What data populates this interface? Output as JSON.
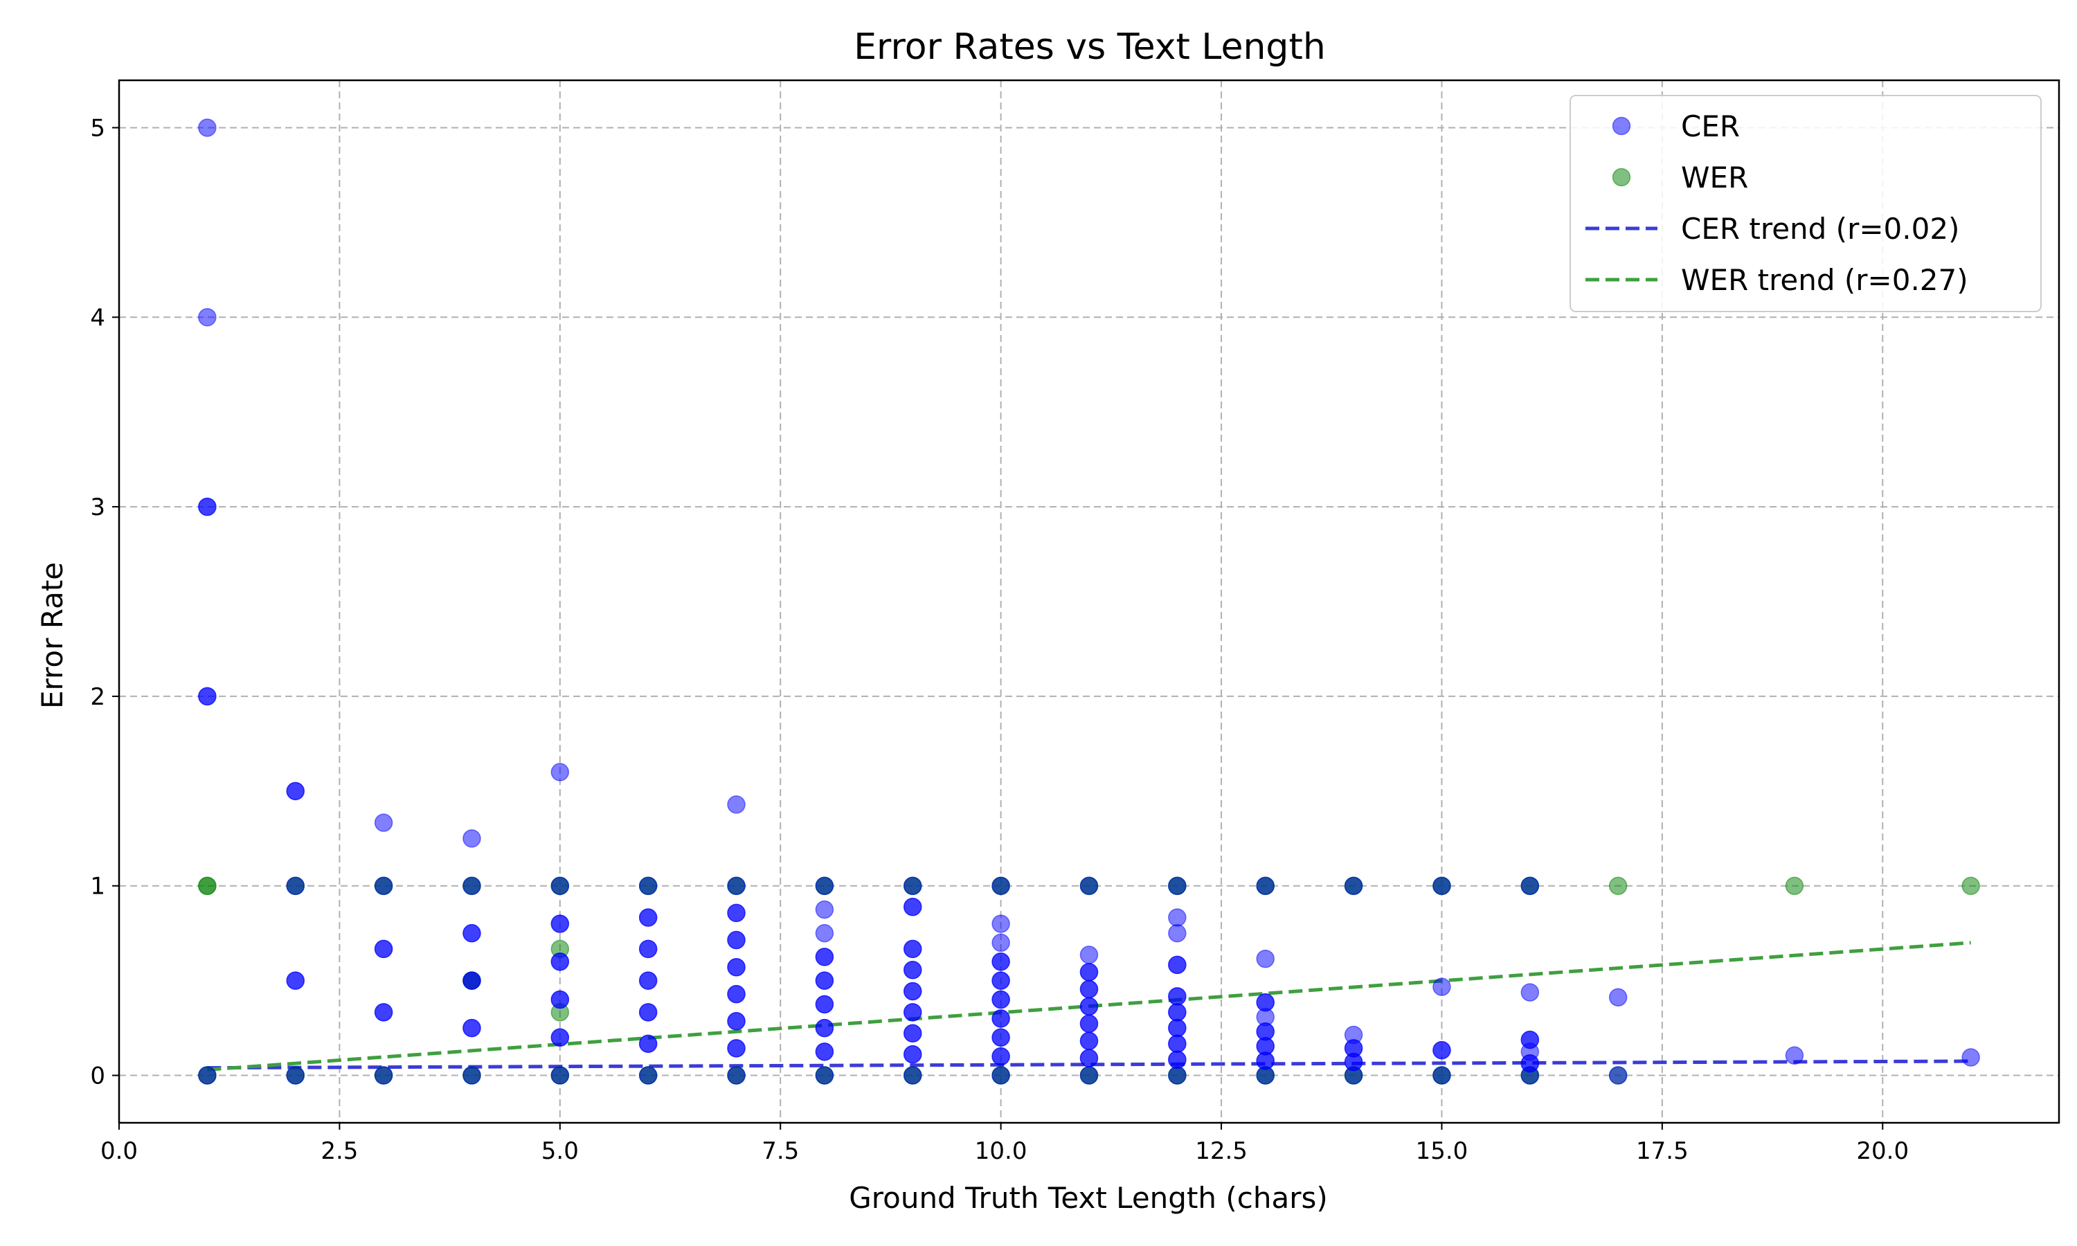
{
  "chart_data": {
    "type": "scatter",
    "title": "Error Rates vs Text Length",
    "xlabel": "Ground Truth Text Length (chars)",
    "ylabel": "Error Rate",
    "xlim": [
      0,
      22
    ],
    "ylim": [
      -0.25,
      5.25
    ],
    "xticks": [
      0,
      2.5,
      5,
      7.5,
      10,
      12.5,
      15,
      17.5,
      20
    ],
    "xtick_labels": [
      "0.0",
      "2.5",
      "5.0",
      "7.5",
      "10.0",
      "12.5",
      "15.0",
      "17.5",
      "20.0"
    ],
    "yticks": [
      0,
      1,
      2,
      3,
      4,
      5
    ],
    "ytick_labels": [
      "0",
      "1",
      "2",
      "3",
      "4",
      "5"
    ],
    "grid": true,
    "legend_position": "top-right",
    "colors": {
      "cer": "#0000ff",
      "wer": "#008000",
      "cer_trend": "#3b3bd8",
      "wer_trend": "#3f9f3f",
      "grid": "#b0b0b0"
    },
    "legend": [
      {
        "label": "CER",
        "kind": "marker",
        "series": "cer"
      },
      {
        "label": "WER",
        "kind": "marker",
        "series": "wer"
      },
      {
        "label": "CER trend (r=0.02)",
        "kind": "line",
        "series": "cer_trend"
      },
      {
        "label": "WER trend (r=0.27)",
        "kind": "line",
        "series": "wer_trend"
      }
    ],
    "series": [
      {
        "name": "CER",
        "key": "cer",
        "points": [
          [
            1,
            5
          ],
          [
            1,
            4
          ],
          [
            1,
            3
          ],
          [
            1,
            3
          ],
          [
            1,
            2
          ],
          [
            1,
            2
          ],
          [
            1,
            0
          ],
          [
            2,
            1.5
          ],
          [
            2,
            1.5
          ],
          [
            2,
            1
          ],
          [
            2,
            0.5
          ],
          [
            2,
            0.5
          ],
          [
            2,
            0
          ],
          [
            3,
            1.333
          ],
          [
            3,
            1
          ],
          [
            3,
            0.667
          ],
          [
            3,
            0.667
          ],
          [
            3,
            0.333
          ],
          [
            3,
            0.333
          ],
          [
            3,
            0
          ],
          [
            4,
            1.25
          ],
          [
            4,
            1
          ],
          [
            4,
            0.75
          ],
          [
            4,
            0.75
          ],
          [
            4,
            0.5
          ],
          [
            4,
            0.5
          ],
          [
            4,
            0.25
          ],
          [
            4,
            0.25
          ],
          [
            4,
            0
          ],
          [
            5,
            1.6
          ],
          [
            5,
            1
          ],
          [
            5,
            0.8
          ],
          [
            5,
            0.8
          ],
          [
            5,
            0.6
          ],
          [
            5,
            0.6
          ],
          [
            5,
            0.4
          ],
          [
            5,
            0.4
          ],
          [
            5,
            0.2
          ],
          [
            5,
            0.2
          ],
          [
            5,
            0
          ],
          [
            6,
            1
          ],
          [
            6,
            0.833
          ],
          [
            6,
            0.833
          ],
          [
            6,
            0.667
          ],
          [
            6,
            0.667
          ],
          [
            6,
            0.5
          ],
          [
            6,
            0.5
          ],
          [
            6,
            0.333
          ],
          [
            6,
            0.333
          ],
          [
            6,
            0.167
          ],
          [
            6,
            0.167
          ],
          [
            6,
            0
          ],
          [
            7,
            1.429
          ],
          [
            7,
            1
          ],
          [
            7,
            0.857
          ],
          [
            7,
            0.857
          ],
          [
            7,
            0.714
          ],
          [
            7,
            0.714
          ],
          [
            7,
            0.571
          ],
          [
            7,
            0.571
          ],
          [
            7,
            0.429
          ],
          [
            7,
            0.429
          ],
          [
            7,
            0.286
          ],
          [
            7,
            0.286
          ],
          [
            7,
            0.143
          ],
          [
            7,
            0.143
          ],
          [
            7,
            0
          ],
          [
            8,
            1
          ],
          [
            8,
            0.875
          ],
          [
            8,
            0.75
          ],
          [
            8,
            0.625
          ],
          [
            8,
            0.625
          ],
          [
            8,
            0.5
          ],
          [
            8,
            0.5
          ],
          [
            8,
            0.375
          ],
          [
            8,
            0.375
          ],
          [
            8,
            0.25
          ],
          [
            8,
            0.25
          ],
          [
            8,
            0.125
          ],
          [
            8,
            0.125
          ],
          [
            8,
            0
          ],
          [
            9,
            1
          ],
          [
            9,
            0.889
          ],
          [
            9,
            0.889
          ],
          [
            9,
            0.667
          ],
          [
            9,
            0.667
          ],
          [
            9,
            0.556
          ],
          [
            9,
            0.556
          ],
          [
            9,
            0.444
          ],
          [
            9,
            0.444
          ],
          [
            9,
            0.333
          ],
          [
            9,
            0.333
          ],
          [
            9,
            0.222
          ],
          [
            9,
            0.222
          ],
          [
            9,
            0.111
          ],
          [
            9,
            0.111
          ],
          [
            9,
            0
          ],
          [
            10,
            1
          ],
          [
            10,
            0.8
          ],
          [
            10,
            0.7
          ],
          [
            10,
            0.6
          ],
          [
            10,
            0.6
          ],
          [
            10,
            0.5
          ],
          [
            10,
            0.5
          ],
          [
            10,
            0.4
          ],
          [
            10,
            0.4
          ],
          [
            10,
            0.3
          ],
          [
            10,
            0.3
          ],
          [
            10,
            0.2
          ],
          [
            10,
            0.2
          ],
          [
            10,
            0.1
          ],
          [
            10,
            0.1
          ],
          [
            10,
            0
          ],
          [
            11,
            1
          ],
          [
            11,
            0.636
          ],
          [
            11,
            0.545
          ],
          [
            11,
            0.545
          ],
          [
            11,
            0.455
          ],
          [
            11,
            0.455
          ],
          [
            11,
            0.364
          ],
          [
            11,
            0.364
          ],
          [
            11,
            0.273
          ],
          [
            11,
            0.273
          ],
          [
            11,
            0.182
          ],
          [
            11,
            0.182
          ],
          [
            11,
            0.091
          ],
          [
            11,
            0.091
          ],
          [
            11,
            0
          ],
          [
            12,
            1
          ],
          [
            12,
            0.833
          ],
          [
            12,
            0.75
          ],
          [
            12,
            0.583
          ],
          [
            12,
            0.583
          ],
          [
            12,
            0.417
          ],
          [
            12,
            0.417
          ],
          [
            12,
            0.333
          ],
          [
            12,
            0.333
          ],
          [
            12,
            0.25
          ],
          [
            12,
            0.25
          ],
          [
            12,
            0.167
          ],
          [
            12,
            0.167
          ],
          [
            12,
            0.083
          ],
          [
            12,
            0.083
          ],
          [
            12,
            0
          ],
          [
            13,
            1
          ],
          [
            13,
            0.615
          ],
          [
            13,
            0.385
          ],
          [
            13,
            0.385
          ],
          [
            13,
            0.308
          ],
          [
            13,
            0.231
          ],
          [
            13,
            0.231
          ],
          [
            13,
            0.154
          ],
          [
            13,
            0.154
          ],
          [
            13,
            0.077
          ],
          [
            13,
            0.077
          ],
          [
            13,
            0
          ],
          [
            14,
            1
          ],
          [
            14,
            0.214
          ],
          [
            14,
            0.143
          ],
          [
            14,
            0.143
          ],
          [
            14,
            0.071
          ],
          [
            14,
            0.071
          ],
          [
            14,
            0
          ],
          [
            15,
            1
          ],
          [
            15,
            0.467
          ],
          [
            15,
            0.133
          ],
          [
            15,
            0.133
          ],
          [
            15,
            0
          ],
          [
            16,
            1
          ],
          [
            16,
            0.438
          ],
          [
            16,
            0.188
          ],
          [
            16,
            0.188
          ],
          [
            16,
            0.125
          ],
          [
            16,
            0.063
          ],
          [
            16,
            0.063
          ],
          [
            16,
            0
          ],
          [
            17,
            0.412
          ],
          [
            17,
            0
          ],
          [
            19,
            0.105
          ],
          [
            21,
            0.095
          ]
        ]
      },
      {
        "name": "WER",
        "key": "wer",
        "points": [
          [
            1,
            1
          ],
          [
            1,
            1
          ],
          [
            1,
            0
          ],
          [
            1,
            0
          ],
          [
            2,
            1
          ],
          [
            2,
            1
          ],
          [
            2,
            0
          ],
          [
            2,
            0
          ],
          [
            3,
            1
          ],
          [
            3,
            1
          ],
          [
            3,
            0
          ],
          [
            3,
            0
          ],
          [
            4,
            1
          ],
          [
            4,
            1
          ],
          [
            4,
            0.5
          ],
          [
            4,
            0.5
          ],
          [
            4,
            0
          ],
          [
            4,
            0
          ],
          [
            5,
            1
          ],
          [
            5,
            1
          ],
          [
            5,
            0.667
          ],
          [
            5,
            0.333
          ],
          [
            5,
            0
          ],
          [
            5,
            0
          ],
          [
            6,
            1
          ],
          [
            6,
            1
          ],
          [
            6,
            0
          ],
          [
            6,
            0
          ],
          [
            7,
            1
          ],
          [
            7,
            1
          ],
          [
            7,
            0
          ],
          [
            7,
            0
          ],
          [
            8,
            1
          ],
          [
            8,
            1
          ],
          [
            8,
            0
          ],
          [
            8,
            0
          ],
          [
            9,
            1
          ],
          [
            9,
            1
          ],
          [
            9,
            0
          ],
          [
            9,
            0
          ],
          [
            10,
            1
          ],
          [
            10,
            1
          ],
          [
            10,
            0
          ],
          [
            10,
            0
          ],
          [
            11,
            1
          ],
          [
            11,
            1
          ],
          [
            11,
            0
          ],
          [
            11,
            0
          ],
          [
            12,
            1
          ],
          [
            12,
            1
          ],
          [
            12,
            0
          ],
          [
            12,
            0
          ],
          [
            13,
            1
          ],
          [
            13,
            1
          ],
          [
            13,
            0
          ],
          [
            13,
            0
          ],
          [
            14,
            1
          ],
          [
            14,
            1
          ],
          [
            14,
            0
          ],
          [
            14,
            0
          ],
          [
            15,
            1
          ],
          [
            15,
            1
          ],
          [
            15,
            0
          ],
          [
            15,
            0
          ],
          [
            16,
            1
          ],
          [
            16,
            1
          ],
          [
            16,
            0
          ],
          [
            16,
            0
          ],
          [
            17,
            1
          ],
          [
            17,
            0
          ],
          [
            19,
            1
          ],
          [
            21,
            1
          ]
        ]
      },
      {
        "name": "CER trend (r=0.02)",
        "key": "cer_trend",
        "line": [
          [
            1,
            0.04
          ],
          [
            21,
            0.075
          ]
        ]
      },
      {
        "name": "WER trend (r=0.27)",
        "key": "wer_trend",
        "line": [
          [
            1,
            0.03
          ],
          [
            21,
            0.7
          ]
        ]
      }
    ]
  }
}
